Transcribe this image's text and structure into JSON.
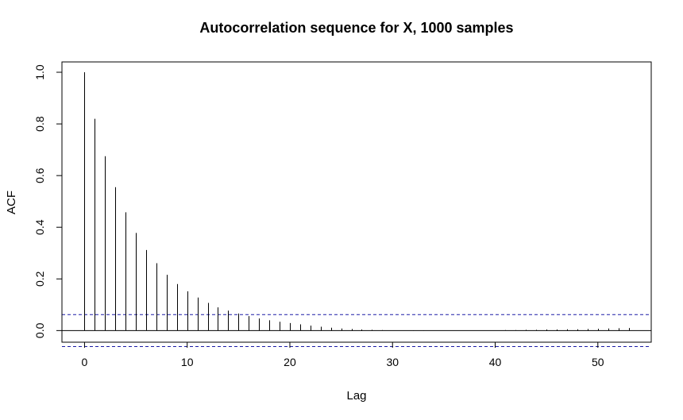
{
  "chart_data": {
    "type": "bar",
    "title": "Autocorrelation sequence for X, 1000 samples",
    "xlabel": "Lag",
    "ylabel": "ACF",
    "xlim": [
      -2.2,
      55.2
    ],
    "ylim": [
      -0.045,
      1.04
    ],
    "xticks": [
      0,
      10,
      20,
      30,
      40,
      50
    ],
    "yticks": [
      0.0,
      0.2,
      0.4,
      0.6,
      0.8,
      1.0
    ],
    "ytick_labels": [
      "0.0",
      "0.2",
      "0.4",
      "0.6",
      "0.8",
      "1.0"
    ],
    "confidence_band": [
      -0.062,
      0.062
    ],
    "confidence_color": "#1a1aa6",
    "grid": false,
    "lags": [
      0,
      1,
      2,
      3,
      4,
      5,
      6,
      7,
      8,
      9,
      10,
      11,
      12,
      13,
      14,
      15,
      16,
      17,
      18,
      19,
      20,
      21,
      22,
      23,
      24,
      25,
      26,
      27,
      28,
      29,
      30,
      31,
      32,
      33,
      34,
      35,
      36,
      37,
      38,
      39,
      40,
      41,
      42,
      43,
      44,
      45,
      46,
      47,
      48,
      49,
      50,
      51,
      52,
      53
    ],
    "acf": [
      1.0,
      0.82,
      0.675,
      0.555,
      0.458,
      0.378,
      0.312,
      0.261,
      0.216,
      0.18,
      0.152,
      0.128,
      0.107,
      0.09,
      0.077,
      0.066,
      0.056,
      0.047,
      0.04,
      0.034,
      0.029,
      0.024,
      0.019,
      0.015,
      0.011,
      0.008,
      0.006,
      0.004,
      0.003,
      0.002,
      0.001,
      0.0,
      -0.001,
      -0.001,
      0.0,
      0.0,
      0.001,
      0.0,
      0.0,
      0.001,
      0.001,
      0.002,
      0.002,
      0.003,
      0.003,
      0.004,
      0.004,
      0.005,
      0.005,
      0.006,
      0.007,
      0.008,
      0.009,
      0.01
    ]
  }
}
